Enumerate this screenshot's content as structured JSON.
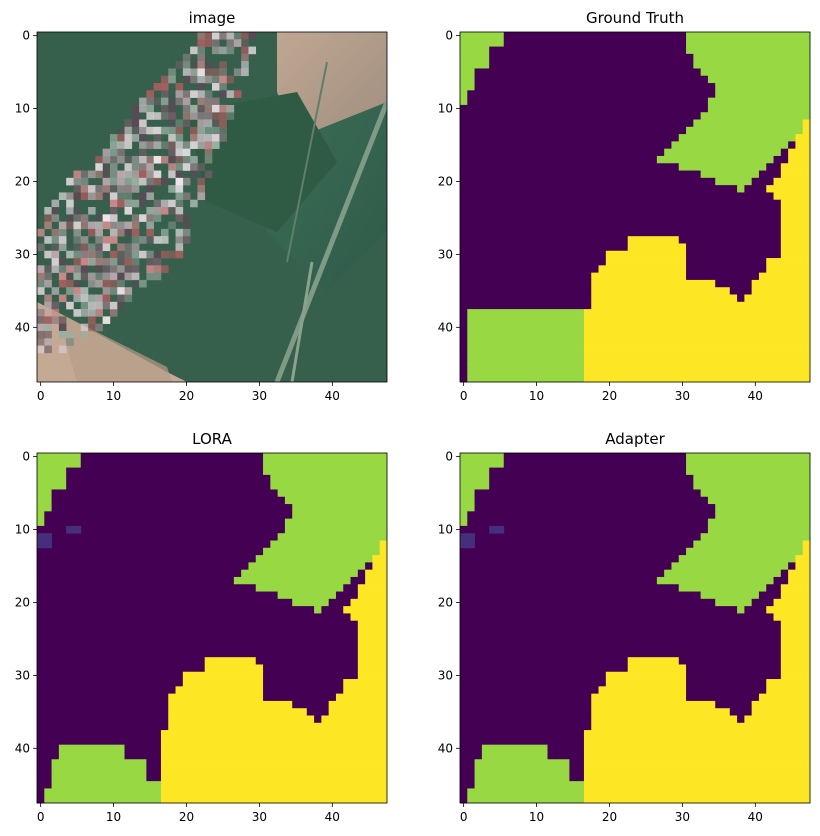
{
  "figure": {
    "palette": {
      "class0": "#440154",
      "class1": "#97d843",
      "class2": "#fde725",
      "uncertain": "#472e7c"
    },
    "ticks": {
      "x": [
        0,
        10,
        20,
        30,
        40
      ],
      "y": [
        0,
        10,
        20,
        30,
        40
      ]
    }
  },
  "chart_data": [
    {
      "type": "heatmap",
      "title": "image",
      "kind": "rgb-satellite-image",
      "grid_size": 48,
      "xlim": [
        -0.5,
        47.5
      ],
      "ylim": [
        47.5,
        -0.5
      ],
      "x_ticks": [
        0,
        10,
        20,
        30,
        40
      ],
      "y_ticks": [
        0,
        10,
        20,
        30,
        40
      ],
      "legend": "none",
      "grid": false
    },
    {
      "type": "heatmap",
      "title": "Ground Truth",
      "grid_size": 48,
      "xlim": [
        -0.5,
        47.5
      ],
      "ylim": [
        47.5,
        -0.5
      ],
      "x_ticks": [
        0,
        10,
        20,
        30,
        40
      ],
      "y_ticks": [
        0,
        10,
        20,
        30,
        40
      ],
      "legend": "none",
      "grid": false
    },
    {
      "type": "heatmap",
      "title": "LORA",
      "grid_size": 48,
      "xlim": [
        -0.5,
        47.5
      ],
      "ylim": [
        47.5,
        -0.5
      ],
      "x_ticks": [
        0,
        10,
        20,
        30,
        40
      ],
      "y_ticks": [
        0,
        10,
        20,
        30,
        40
      ],
      "legend": "none",
      "grid": false
    },
    {
      "type": "heatmap",
      "title": "Adapter",
      "grid_size": 48,
      "xlim": [
        -0.5,
        47.5
      ],
      "ylim": [
        47.5,
        -0.5
      ],
      "x_ticks": [
        0,
        10,
        20,
        30,
        40
      ],
      "y_ticks": [
        0,
        10,
        20,
        30,
        40
      ],
      "legend": "none",
      "grid": false
    }
  ]
}
